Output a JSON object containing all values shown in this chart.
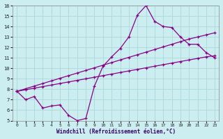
{
  "xlabel": "Windchill (Refroidissement éolien,°C)",
  "ylabel": "",
  "xlim": [
    -0.5,
    23.5
  ],
  "ylim": [
    5,
    16
  ],
  "xticks": [
    0,
    1,
    2,
    3,
    4,
    5,
    6,
    7,
    8,
    9,
    10,
    11,
    12,
    13,
    14,
    15,
    16,
    17,
    18,
    19,
    20,
    21,
    22,
    23
  ],
  "yticks": [
    5,
    6,
    7,
    8,
    9,
    10,
    11,
    12,
    13,
    14,
    15,
    16
  ],
  "background_color": "#cceef0",
  "grid_color": "#aad8dc",
  "line_color": "#880088",
  "line1_x": [
    0,
    1,
    2,
    3,
    4,
    5,
    6,
    7,
    8,
    9,
    10,
    11,
    12,
    13,
    14,
    15,
    16,
    17,
    18,
    19,
    20,
    21,
    22,
    23
  ],
  "line1_y": [
    7.8,
    7.0,
    7.3,
    6.2,
    6.4,
    6.5,
    5.5,
    5.0,
    5.2,
    8.3,
    10.2,
    11.1,
    11.9,
    13.0,
    15.1,
    16.0,
    14.5,
    14.0,
    13.9,
    13.0,
    12.3,
    12.3,
    11.5,
    11.0
  ],
  "line2_x": [
    0,
    1,
    2,
    3,
    4,
    5,
    6,
    7,
    8,
    9,
    10,
    11,
    12,
    13,
    14,
    15,
    16,
    17,
    18,
    19,
    20,
    21,
    22,
    23
  ],
  "line2_y": [
    7.8,
    8.05,
    8.3,
    8.55,
    8.8,
    9.05,
    9.3,
    9.55,
    9.8,
    10.05,
    10.3,
    10.55,
    10.8,
    11.05,
    11.3,
    11.55,
    11.8,
    12.05,
    12.3,
    12.55,
    12.8,
    13.0,
    13.2,
    13.4
  ],
  "line3_x": [
    0,
    1,
    2,
    3,
    4,
    5,
    6,
    7,
    8,
    9,
    10,
    11,
    12,
    13,
    14,
    15,
    16,
    17,
    18,
    19,
    20,
    21,
    22,
    23
  ],
  "line3_y": [
    7.8,
    7.95,
    8.1,
    8.25,
    8.4,
    8.55,
    8.7,
    8.85,
    9.0,
    9.15,
    9.3,
    9.45,
    9.6,
    9.75,
    9.9,
    10.05,
    10.2,
    10.35,
    10.5,
    10.65,
    10.8,
    10.95,
    11.1,
    11.2
  ],
  "marker": "+"
}
